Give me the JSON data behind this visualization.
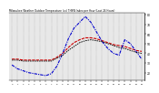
{
  "title": "Milwaukee Weather Outdoor Temperature (vs) THSW Index per Hour (Last 24 Hours)",
  "hours": [
    0,
    1,
    2,
    3,
    4,
    5,
    6,
    7,
    8,
    9,
    10,
    11,
    12,
    13,
    14,
    15,
    16,
    17,
    18,
    19,
    20,
    21,
    22,
    23
  ],
  "temp": [
    34,
    34,
    33,
    33,
    33,
    33,
    33,
    33,
    36,
    40,
    46,
    51,
    54,
    56,
    56,
    55,
    53,
    51,
    49,
    48,
    47,
    45,
    43,
    42
  ],
  "thsw": [
    28,
    24,
    22,
    20,
    19,
    18,
    17,
    19,
    27,
    40,
    55,
    66,
    72,
    78,
    72,
    62,
    52,
    45,
    40,
    38,
    54,
    50,
    42,
    34
  ],
  "black_line": [
    33,
    33,
    32,
    32,
    32,
    32,
    32,
    32,
    35,
    38,
    43,
    47,
    51,
    53,
    54,
    53,
    52,
    50,
    48,
    46,
    45,
    43,
    41,
    40
  ],
  "ylim": [
    12,
    82
  ],
  "ytick_positions": [
    20,
    30,
    40,
    50,
    60,
    70,
    80
  ],
  "ytick_labels": [
    "20",
    "30",
    "40",
    "50",
    "60",
    "70",
    "80"
  ],
  "temp_color": "#cc0000",
  "thsw_color": "#0000cc",
  "black_color": "#000000",
  "bg_color": "#ffffff",
  "plot_bg": "#e8e8e8",
  "grid_color": "#888888"
}
